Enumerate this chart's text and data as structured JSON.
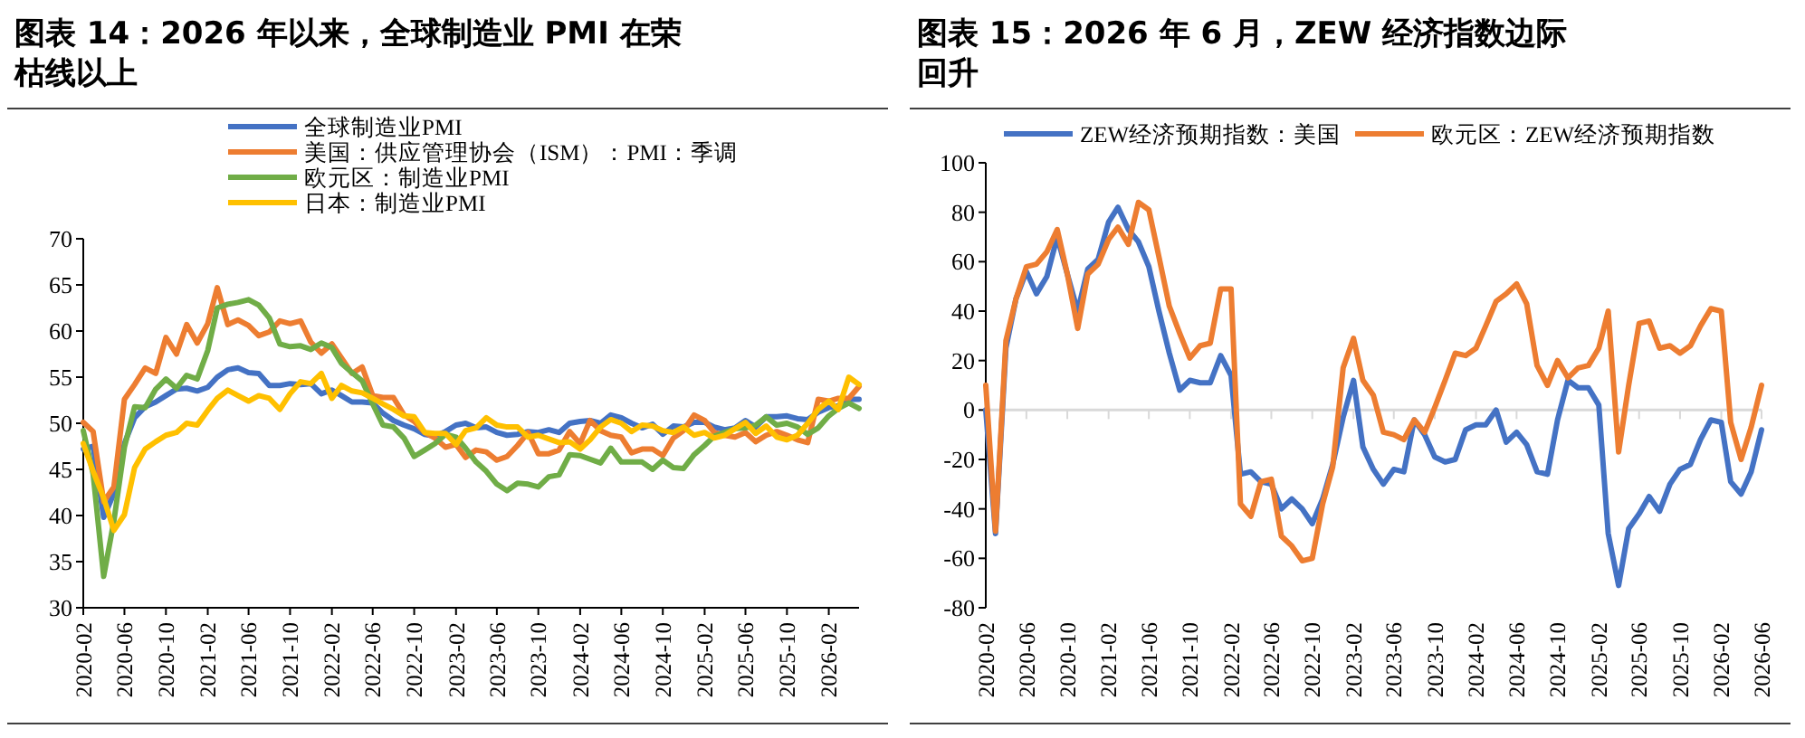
{
  "chart_data": [
    {
      "type": "line",
      "title": "图表 14：2026 年以来，全球制造业 PMI 在荣枯线以上",
      "legend": "top",
      "grid": false,
      "x": [
        "2020-02",
        "2020-03",
        "2020-04",
        "2020-05",
        "2020-06",
        "2020-07",
        "2020-08",
        "2020-09",
        "2020-10",
        "2020-11",
        "2020-12",
        "2021-01",
        "2021-02",
        "2021-03",
        "2021-04",
        "2021-05",
        "2021-06",
        "2021-07",
        "2021-08",
        "2021-09",
        "2021-10",
        "2021-11",
        "2021-12",
        "2022-01",
        "2022-02",
        "2022-03",
        "2022-04",
        "2022-05",
        "2022-06",
        "2022-07",
        "2022-08",
        "2022-09",
        "2022-10",
        "2022-11",
        "2022-12",
        "2023-01",
        "2023-02",
        "2023-03",
        "2023-04",
        "2023-05",
        "2023-06",
        "2023-07",
        "2023-08",
        "2023-09",
        "2023-10",
        "2023-11",
        "2023-12",
        "2024-01",
        "2024-02",
        "2024-03",
        "2024-04",
        "2024-05",
        "2024-06",
        "2024-07",
        "2024-08",
        "2024-09",
        "2024-10",
        "2024-11",
        "2024-12",
        "2025-01",
        "2025-02",
        "2025-03",
        "2025-04",
        "2025-05",
        "2025-06",
        "2025-07",
        "2025-08",
        "2025-09",
        "2025-10",
        "2025-11",
        "2025-12",
        "2026-01",
        "2026-02",
        "2026-03",
        "2026-04",
        "2026-05"
      ],
      "xlim": [
        "2020-02",
        "2026-05"
      ],
      "xticks": [
        "2020-02",
        "2020-06",
        "2020-10",
        "2021-02",
        "2021-06",
        "2021-10",
        "2022-02",
        "2022-06",
        "2022-10",
        "2023-02",
        "2023-06",
        "2023-10",
        "2024-02",
        "2024-06",
        "2024-10",
        "2025-02",
        "2025-06",
        "2025-10",
        "2026-02"
      ],
      "ylim": [
        30,
        70
      ],
      "yticks": [
        30,
        35,
        40,
        45,
        50,
        55,
        60,
        65,
        70
      ],
      "series": [
        {
          "name": "全球制造业PMI",
          "color": "#4472c4",
          "values": [
            47.2,
            47.5,
            39.8,
            42.4,
            47.8,
            50.6,
            51.8,
            52.3,
            53.0,
            53.7,
            53.8,
            53.5,
            53.9,
            55.0,
            55.8,
            56.0,
            55.5,
            55.4,
            54.1,
            54.1,
            54.3,
            54.2,
            54.3,
            53.2,
            53.6,
            53.0,
            52.3,
            52.3,
            52.2,
            51.1,
            50.3,
            49.8,
            49.4,
            48.8,
            48.6,
            49.1,
            49.8,
            50.0,
            49.5,
            49.6,
            49.0,
            48.7,
            48.8,
            49.1,
            49.0,
            49.3,
            49.0,
            50.0,
            50.2,
            50.3,
            50.0,
            50.9,
            50.6,
            50.0,
            49.5,
            49.9,
            48.8,
            49.7,
            49.6,
            50.1,
            50.1,
            49.6,
            49.3,
            49.5,
            50.3,
            49.6,
            50.7,
            50.7,
            50.8,
            50.5,
            50.4,
            51.2,
            51.7,
            51.9,
            52.6,
            52.6
          ]
        },
        {
          "name": "美国：供应管理协会（ISM）：PMI：季调",
          "color": "#ed7d31",
          "values": [
            50.1,
            49.1,
            41.5,
            43.1,
            52.6,
            54.2,
            56.0,
            55.4,
            59.3,
            57.5,
            60.7,
            58.7,
            60.8,
            64.7,
            60.7,
            61.2,
            60.6,
            59.5,
            59.9,
            61.1,
            60.8,
            61.1,
            58.8,
            57.6,
            58.6,
            57.1,
            55.4,
            56.1,
            53.0,
            52.8,
            52.8,
            50.9,
            50.2,
            49.0,
            48.4,
            47.4,
            47.7,
            46.3,
            47.1,
            46.9,
            46.0,
            46.4,
            47.6,
            49.0,
            46.7,
            46.7,
            47.1,
            49.1,
            47.8,
            50.3,
            49.2,
            48.7,
            48.5,
            46.8,
            47.2,
            47.2,
            46.5,
            48.4,
            49.2,
            50.9,
            50.3,
            49.0,
            48.7,
            48.5,
            49.0,
            48.0,
            48.7,
            49.1,
            48.7,
            48.2,
            47.9,
            52.6,
            52.4,
            52.7,
            52.7,
            54.0
          ]
        },
        {
          "name": "欧元区：制造业PMI",
          "color": "#70ad47",
          "values": [
            49.2,
            44.5,
            33.4,
            39.4,
            47.4,
            51.8,
            51.7,
            53.7,
            54.8,
            53.8,
            55.2,
            54.8,
            57.9,
            62.5,
            62.9,
            63.1,
            63.4,
            62.8,
            61.4,
            58.6,
            58.3,
            58.4,
            58.0,
            58.7,
            58.2,
            56.5,
            55.5,
            54.6,
            52.1,
            49.8,
            49.6,
            48.4,
            46.4,
            47.1,
            47.8,
            48.8,
            48.5,
            47.3,
            45.8,
            44.8,
            43.4,
            42.7,
            43.5,
            43.4,
            43.1,
            44.2,
            44.4,
            46.6,
            46.5,
            46.1,
            45.7,
            47.3,
            45.8,
            45.8,
            45.8,
            45.0,
            46.0,
            45.2,
            45.1,
            46.6,
            47.6,
            48.6,
            49.0,
            49.4,
            49.5,
            49.8,
            50.7,
            49.8,
            50.0,
            49.6,
            48.8,
            49.5,
            50.8,
            51.6,
            52.2,
            51.6
          ]
        },
        {
          "name": "日本：制造业PMI",
          "color": "#ffc000",
          "values": [
            47.8,
            44.8,
            41.9,
            38.4,
            40.1,
            45.2,
            47.2,
            48.0,
            48.7,
            49.0,
            50.0,
            49.8,
            51.4,
            52.7,
            53.6,
            53.0,
            52.4,
            53.0,
            52.7,
            51.5,
            53.2,
            54.5,
            54.3,
            55.4,
            52.7,
            54.1,
            53.5,
            53.3,
            52.7,
            52.1,
            51.5,
            50.8,
            50.7,
            49.0,
            48.9,
            48.9,
            47.7,
            49.2,
            49.5,
            50.6,
            49.8,
            49.6,
            49.6,
            48.5,
            48.7,
            48.3,
            47.9,
            48.0,
            47.2,
            48.2,
            49.6,
            50.4,
            50.0,
            49.1,
            49.8,
            49.7,
            49.2,
            49.0,
            49.6,
            48.7,
            49.0,
            48.4,
            48.7,
            49.4,
            50.1,
            48.9,
            49.7,
            48.5,
            48.2,
            48.7,
            50.0,
            51.5,
            52.4,
            51.5,
            55.0,
            54.2
          ]
        }
      ]
    },
    {
      "type": "line",
      "title": "图表 15：2026 年 6 月，ZEW 经济指数边际回升",
      "legend": "top",
      "grid": false,
      "x": [
        "2020-02",
        "2020-03",
        "2020-04",
        "2020-05",
        "2020-06",
        "2020-07",
        "2020-08",
        "2020-09",
        "2020-10",
        "2020-11",
        "2020-12",
        "2021-01",
        "2021-02",
        "2021-03",
        "2021-04",
        "2021-05",
        "2021-06",
        "2021-07",
        "2021-08",
        "2021-09",
        "2021-10",
        "2021-11",
        "2021-12",
        "2022-01",
        "2022-02",
        "2022-03",
        "2022-04",
        "2022-05",
        "2022-06",
        "2022-07",
        "2022-08",
        "2022-09",
        "2022-10",
        "2022-11",
        "2022-12",
        "2023-01",
        "2023-02",
        "2023-03",
        "2023-04",
        "2023-05",
        "2023-06",
        "2023-07",
        "2023-08",
        "2023-09",
        "2023-10",
        "2023-11",
        "2023-12",
        "2024-01",
        "2024-02",
        "2024-03",
        "2024-04",
        "2024-05",
        "2024-06",
        "2024-07",
        "2024-08",
        "2024-09",
        "2024-10",
        "2024-11",
        "2024-12",
        "2025-01",
        "2025-02",
        "2025-03",
        "2025-04",
        "2025-05",
        "2025-06",
        "2025-07",
        "2025-08",
        "2025-09",
        "2025-10",
        "2025-11",
        "2025-12",
        "2026-01",
        "2026-02",
        "2026-03",
        "2026-04",
        "2026-05",
        "2026-06"
      ],
      "xlim": [
        "2020-02",
        "2026-06"
      ],
      "xticks": [
        "2020-02",
        "2020-06",
        "2020-10",
        "2021-02",
        "2021-06",
        "2021-10",
        "2022-02",
        "2022-06",
        "2022-10",
        "2023-02",
        "2023-06",
        "2023-10",
        "2024-02",
        "2024-06",
        "2024-10",
        "2025-02",
        "2025-06",
        "2025-10",
        "2026-02",
        "2026-06"
      ],
      "ylim": [
        -80,
        100
      ],
      "yticks": [
        -80,
        -60,
        -40,
        -20,
        0,
        20,
        40,
        60,
        80,
        100
      ],
      "ref_lines": [
        {
          "axis": "y",
          "value": 0,
          "color": "#d9d9d9"
        }
      ],
      "series": [
        {
          "name": "ZEW经济预期指数：美国",
          "color": "#4472c4",
          "values": [
            0,
            -50,
            25,
            45,
            56,
            47,
            54,
            70,
            55,
            40,
            57,
            61,
            76,
            82,
            73,
            68,
            58,
            40,
            23,
            8,
            12,
            11,
            11,
            22,
            14,
            -26,
            -25,
            -29,
            -30,
            -40,
            -36,
            -40,
            -46,
            -36,
            -22,
            -3,
            12,
            -15,
            -24,
            -30,
            -24,
            -25,
            -4,
            -10,
            -19,
            -21,
            -20,
            -8,
            -6,
            -6,
            0,
            -13,
            -9,
            -14,
            -25,
            -26,
            -4,
            12,
            9,
            9,
            2,
            -50,
            -71,
            -48,
            -42,
            -35,
            -41,
            -30,
            -24,
            -22,
            -12,
            -4,
            -5,
            -29,
            -34,
            -25,
            -8
          ]
        },
        {
          "name": "欧元区：ZEW经济预期指数",
          "color": "#ed7d31",
          "values": [
            10,
            -49,
            28,
            45,
            58,
            59,
            64,
            73,
            55,
            33,
            55,
            59,
            69,
            74,
            67,
            84,
            81,
            62,
            42,
            31,
            21,
            26,
            27,
            49,
            49,
            -38,
            -43,
            -29,
            -28,
            -51,
            -55,
            -61,
            -60,
            -38,
            -23,
            17,
            29,
            12,
            6,
            -9,
            -10,
            -12,
            -4,
            -9,
            1,
            12,
            23,
            22,
            25,
            34,
            44,
            47,
            51,
            43,
            18,
            10,
            20,
            13,
            17,
            18,
            25,
            40,
            -17,
            10,
            35,
            36,
            25,
            26,
            23,
            26,
            34,
            41,
            40,
            -5,
            -20,
            -7,
            10
          ]
        }
      ]
    }
  ]
}
